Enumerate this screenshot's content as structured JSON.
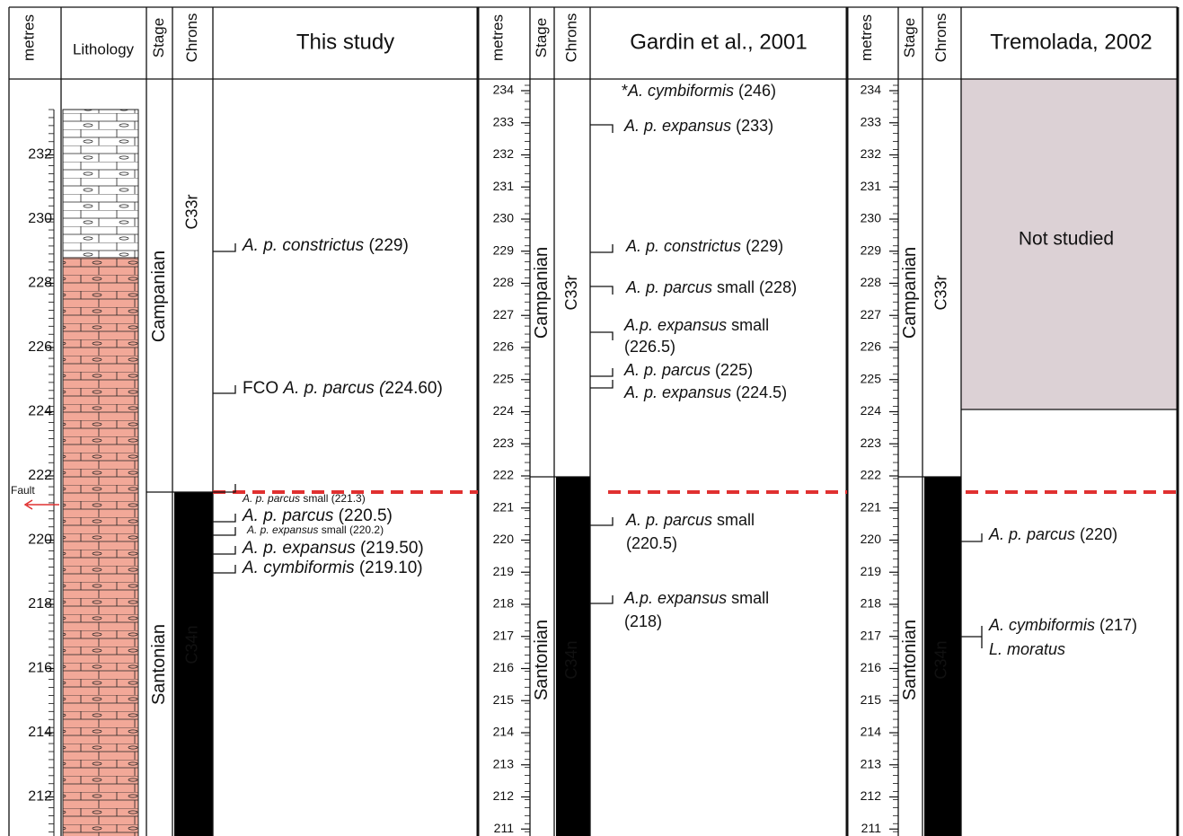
{
  "sections": [
    {
      "header": {
        "metres": "metres",
        "lithology": "Lithology",
        "stage": "Stage",
        "chrons": "Chrons",
        "title": "This study"
      },
      "depths": [
        232,
        230,
        228,
        226,
        224,
        222,
        220,
        218,
        216,
        214,
        212
      ],
      "stages": [
        "Campanian",
        "Santonian"
      ],
      "chrons": [
        "C33r",
        "C34n"
      ],
      "fault": "Fault",
      "events": [
        {
          "lines": [
            [
              {
                "text": "A. p. constrictus",
                "italic": true
              },
              {
                "text": " (229)"
              }
            ]
          ]
        },
        {
          "lines": [
            [
              {
                "text": "FCO "
              },
              {
                "text": "A. p. parcus (",
                "italic": true
              },
              {
                "text": "224.60)"
              }
            ]
          ]
        },
        {
          "lines": [
            [
              {
                "text": "A. p. parcus",
                "italic": true
              },
              {
                "text": " small (221.3)"
              }
            ]
          ]
        },
        {
          "lines": [
            [
              {
                "text": "A. p. parcus",
                "italic": true
              },
              {
                "text": " (220.5)"
              }
            ]
          ]
        },
        {
          "lines": [
            [
              {
                "text": "A. p. expansus",
                "italic": true
              },
              {
                "text": " small (220.2)"
              }
            ]
          ]
        },
        {
          "lines": [
            [
              {
                "text": "A. p. expansus",
                "italic": true
              },
              {
                "text": " (219.50)"
              }
            ]
          ]
        },
        {
          "lines": [
            [
              {
                "text": "A. cymbiformis",
                "italic": true
              },
              {
                "text": " (219.10)"
              }
            ]
          ]
        }
      ]
    },
    {
      "header": {
        "metres": "metres",
        "stage": "Stage",
        "chrons": "Chrons",
        "title": "Gardin et al., 2001"
      },
      "depths": [
        234,
        233,
        232,
        231,
        230,
        229,
        228,
        227,
        226,
        225,
        224,
        223,
        222,
        221,
        220,
        219,
        218,
        217,
        216,
        215,
        214,
        213,
        212,
        211
      ],
      "stages": [
        "Campanian",
        "Santonian"
      ],
      "chrons": [
        "C33r",
        "C34n"
      ],
      "events": [
        {
          "lines": [
            [
              {
                "text": "*"
              },
              {
                "text": "A. cymbiformis",
                "italic": true
              },
              {
                "text": " (246)"
              }
            ]
          ]
        },
        {
          "lines": [
            [
              {
                "text": "A. p. expansus",
                "italic": true
              },
              {
                "text": " (233)"
              }
            ]
          ]
        },
        {
          "lines": [
            [
              {
                "text": "A. p. constrictus",
                "italic": true
              },
              {
                "text": " (229)"
              }
            ]
          ]
        },
        {
          "lines": [
            [
              {
                "text": "A. p. parcus",
                "italic": true
              },
              {
                "text": " small (228)"
              }
            ]
          ]
        },
        {
          "lines": [
            [
              {
                "text": "A.p. expansus",
                "italic": true
              },
              {
                "text": " small"
              }
            ],
            [
              {
                "text": "(226.5)"
              }
            ]
          ]
        },
        {
          "lines": [
            [
              {
                "text": "A. p. parcus",
                "italic": true
              },
              {
                "text": " (225)"
              }
            ]
          ]
        },
        {
          "lines": [
            [
              {
                "text": "A. p. expansus",
                "italic": true
              },
              {
                "text": " (224.5)"
              }
            ]
          ]
        },
        {
          "lines": [
            [
              {
                "text": "A. p. parcus",
                "italic": true
              },
              {
                "text": " small"
              }
            ],
            [
              {
                "text": "(220.5)"
              }
            ]
          ]
        },
        {
          "lines": [
            [
              {
                "text": "A.p. expansus",
                "italic": true
              },
              {
                "text": " small"
              }
            ],
            [
              {
                "text": "(218)"
              }
            ]
          ]
        }
      ]
    },
    {
      "header": {
        "metres": "metres",
        "stage": "Stage",
        "chrons": "Chrons",
        "title": "Tremolada, 2002"
      },
      "depths": [
        234,
        233,
        232,
        231,
        230,
        229,
        228,
        227,
        226,
        225,
        224,
        223,
        222,
        221,
        220,
        219,
        218,
        217,
        216,
        215,
        214,
        213,
        212,
        211
      ],
      "stages": [
        "Campanian",
        "Santonian"
      ],
      "chrons": [
        "C33r",
        "C34n"
      ],
      "not_studied": "Not studied",
      "events": [
        {
          "lines": [
            [
              {
                "text": "A. p. parcus",
                "italic": true
              },
              {
                "text": " (220)"
              }
            ]
          ]
        },
        {
          "lines": [
            [
              {
                "text": "A. cymbiformis",
                "italic": true
              },
              {
                "text": " (217)"
              }
            ],
            [
              {
                "text": "L. moratus",
                "italic": true
              }
            ]
          ]
        }
      ]
    }
  ]
}
